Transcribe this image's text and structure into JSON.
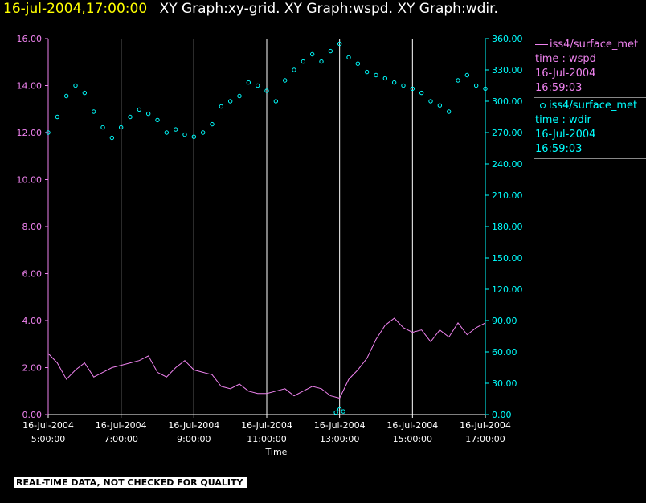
{
  "header": {
    "datetime": "16-jul-2004,17:00:00",
    "graphs": "XY Graph:xy-grid.  XY Graph:wspd.  XY Graph:wdir."
  },
  "legend": [
    {
      "line1": "iss4/surface_met",
      "line2": "time : wspd",
      "line3": "16-Jul-2004",
      "line4": "16:59:03",
      "style": "line"
    },
    {
      "line1": "iss4/surface_met",
      "line2": "time : wdir",
      "line3": "16-Jul-2004",
      "line4": "16:59:03",
      "style": "dot"
    }
  ],
  "footer_banner": "REAL-TIME DATA, NOT CHECKED FOR QUALITY",
  "chart_data": {
    "type": "line",
    "title": "",
    "xlabel": "Time",
    "xlim": [
      5,
      17
    ],
    "x_ticks": [
      {
        "pos": 5,
        "date": "16-Jul-2004",
        "time": "5:00:00"
      },
      {
        "pos": 7,
        "date": "16-Jul-2004",
        "time": "7:00:00"
      },
      {
        "pos": 9,
        "date": "16-Jul-2004",
        "time": "9:00:00"
      },
      {
        "pos": 11,
        "date": "16-Jul-2004",
        "time": "11:00:00"
      },
      {
        "pos": 13,
        "date": "16-Jul-2004",
        "time": "13:00:00"
      },
      {
        "pos": 15,
        "date": "16-Jul-2004",
        "time": "15:00:00"
      },
      {
        "pos": 17,
        "date": "16-Jul-2004",
        "time": "17:00:00"
      }
    ],
    "left_axis": {
      "ylim": [
        0,
        16
      ],
      "ticks": [
        "0.00",
        "2.00",
        "4.00",
        "6.00",
        "8.00",
        "10.00",
        "12.00",
        "14.00",
        "16.00"
      ],
      "color": "#ee82ee"
    },
    "right_axis": {
      "ylim": [
        0,
        360
      ],
      "ticks": [
        "0.00",
        "30.00",
        "60.00",
        "90.00",
        "120.00",
        "150.00",
        "180.00",
        "210.00",
        "240.00",
        "270.00",
        "300.00",
        "330.00",
        "360.00"
      ],
      "color": "#00ffff"
    },
    "grid": "vertical",
    "series": [
      {
        "name": "wspd",
        "axis": "left",
        "style": "line",
        "color": "#ee82ee",
        "x": [
          5.0,
          5.25,
          5.5,
          5.75,
          6.0,
          6.25,
          6.5,
          6.75,
          7.0,
          7.25,
          7.5,
          7.75,
          8.0,
          8.25,
          8.5,
          8.75,
          9.0,
          9.25,
          9.5,
          9.75,
          10.0,
          10.25,
          10.5,
          10.75,
          11.0,
          11.25,
          11.5,
          11.75,
          12.0,
          12.25,
          12.5,
          12.75,
          13.0,
          13.25,
          13.5,
          13.75,
          14.0,
          14.25,
          14.5,
          14.75,
          15.0,
          15.25,
          15.5,
          15.75,
          16.0,
          16.25,
          16.5,
          16.75,
          17.0
        ],
        "y": [
          2.6,
          2.2,
          1.5,
          1.9,
          2.2,
          1.6,
          1.8,
          2.0,
          2.1,
          2.2,
          2.3,
          2.5,
          1.8,
          1.6,
          2.0,
          2.3,
          1.9,
          1.8,
          1.7,
          1.2,
          1.1,
          1.3,
          1.0,
          0.9,
          0.9,
          1.0,
          1.1,
          0.8,
          1.0,
          1.2,
          1.1,
          0.8,
          0.7,
          1.5,
          1.9,
          2.4,
          3.2,
          3.8,
          4.1,
          3.7,
          3.5,
          3.6,
          3.1,
          3.6,
          3.3,
          3.9,
          3.4,
          3.7,
          3.9
        ]
      },
      {
        "name": "wdir",
        "axis": "right",
        "style": "dot",
        "color": "#00ffff",
        "x": [
          5.0,
          5.25,
          5.5,
          5.75,
          6.0,
          6.25,
          6.5,
          6.75,
          7.0,
          7.25,
          7.5,
          7.75,
          8.0,
          8.25,
          8.5,
          8.75,
          9.0,
          9.25,
          9.5,
          9.75,
          10.0,
          10.25,
          10.5,
          10.75,
          11.0,
          11.25,
          11.5,
          11.75,
          12.0,
          12.25,
          12.5,
          12.75,
          13.0,
          13.25,
          13.5,
          13.75,
          14.0,
          14.25,
          14.5,
          14.75,
          15.0,
          15.25,
          15.5,
          15.75,
          16.0,
          16.25,
          16.5,
          16.75,
          17.0
        ],
        "y": [
          270,
          285,
          305,
          315,
          308,
          290,
          275,
          265,
          275,
          285,
          292,
          288,
          282,
          270,
          273,
          268,
          266,
          270,
          278,
          295,
          300,
          305,
          318,
          315,
          310,
          300,
          320,
          330,
          338,
          345,
          338,
          348,
          355,
          342,
          336,
          328,
          325,
          322,
          318,
          315,
          312,
          308,
          300,
          296,
          290,
          320,
          325,
          315,
          312
        ]
      }
    ],
    "extra_points": [
      {
        "series": "wdir",
        "x": 12.9,
        "y": 2
      },
      {
        "series": "wdir",
        "x": 13.0,
        "y": 5
      },
      {
        "series": "wdir",
        "x": 13.1,
        "y": 3
      }
    ]
  }
}
